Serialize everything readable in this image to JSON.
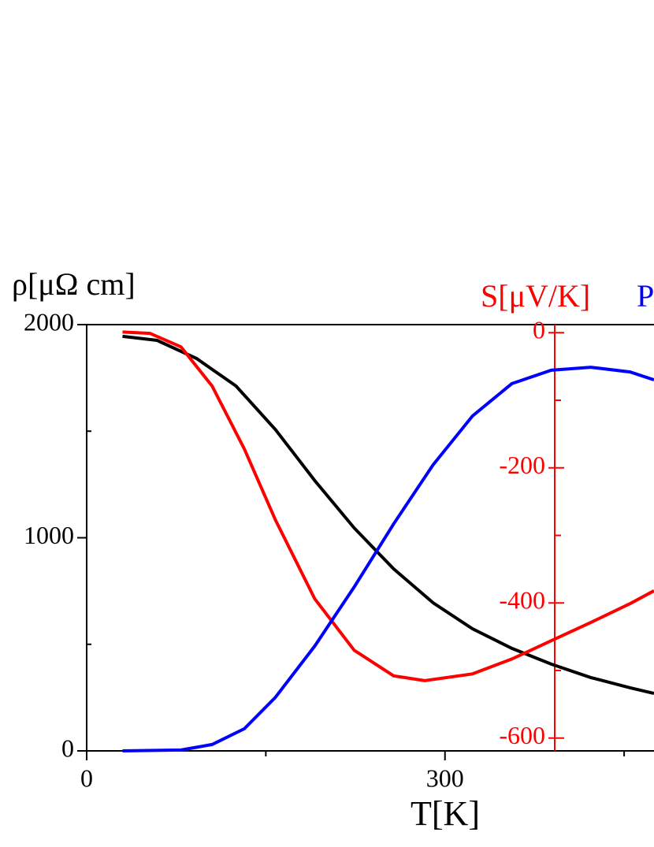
{
  "chart_data": {
    "type": "line",
    "y_label": "ρ[μΩ cm]",
    "y2_label": "S[μV/K]",
    "y3_label": "P",
    "x_label": "T[K]",
    "xlim": [
      0,
      475
    ],
    "xticks": [
      0,
      300
    ],
    "xminor_ticks": [
      150,
      450
    ],
    "ylim": [
      0,
      2000
    ],
    "yticks": [
      0,
      1000,
      2000
    ],
    "yminor_ticks": [
      500,
      1500
    ],
    "y2lim": [
      -619,
      12
    ],
    "y2ticks": [
      0,
      -200,
      -400,
      -600
    ],
    "y2minor_ticks": [
      -100,
      -300,
      -500
    ],
    "series": [
      {
        "color": "#000000",
        "x": [
          30,
          59,
          92,
          125,
          158,
          191,
          224,
          257,
          290,
          323,
          356,
          389,
          422,
          455,
          475
        ],
        "values": [
          1945,
          1926,
          1841,
          1712,
          1508,
          1268,
          1046,
          854,
          695,
          573,
          481,
          407,
          344,
          296,
          270
        ]
      },
      {
        "color": "#ff0000",
        "axis": "y2",
        "x": [
          30,
          53,
          79,
          105,
          132,
          158,
          191,
          224,
          257,
          283,
          323,
          356,
          389,
          422,
          455,
          475
        ],
        "values": [
          1,
          -1,
          -21,
          -79,
          -172,
          -277,
          -394,
          -470,
          -508,
          -515,
          -505,
          -483,
          -456,
          -429,
          -401,
          -382
        ]
      },
      {
        "color": "#0000ff",
        "x": [
          30,
          79,
          105,
          132,
          158,
          191,
          224,
          257,
          290,
          323,
          356,
          389,
          422,
          455,
          475
        ],
        "values": [
          0,
          4,
          30,
          104,
          251,
          492,
          769,
          1065,
          1342,
          1571,
          1723,
          1786,
          1800,
          1778,
          1741
        ]
      }
    ]
  }
}
